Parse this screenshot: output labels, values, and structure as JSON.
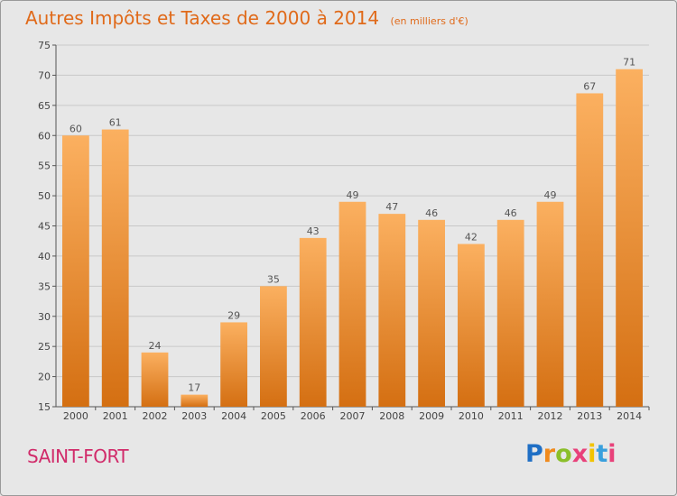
{
  "header": {
    "title": "Autres Impôts et Taxes de 2000 à 2014",
    "subtitle": "(en milliers d'€)"
  },
  "footer": {
    "commune": "SAINT-FORT",
    "logo_text": "Proxiti"
  },
  "colors": {
    "bar_light": "#fbb060",
    "bar_dark": "#d46f12",
    "title": "#e06a1a",
    "commune": "#d12b6a",
    "background": "#e7e7e7",
    "grid": "#c8c8c8"
  },
  "chart_data": {
    "type": "bar",
    "title": "Autres Impôts et Taxes de 2000 à 2014",
    "xlabel": "",
    "ylabel": "",
    "categories": [
      "2000",
      "2001",
      "2002",
      "2003",
      "2004",
      "2005",
      "2006",
      "2007",
      "2008",
      "2009",
      "2010",
      "2011",
      "2012",
      "2013",
      "2014"
    ],
    "values": [
      60,
      61,
      24,
      17,
      29,
      35,
      43,
      49,
      47,
      46,
      42,
      46,
      49,
      67,
      71
    ],
    "ylim": [
      15,
      75
    ],
    "yticks": [
      15,
      20,
      25,
      30,
      35,
      40,
      45,
      50,
      55,
      60,
      65,
      70,
      75
    ],
    "grid": true,
    "data_labels": true
  }
}
